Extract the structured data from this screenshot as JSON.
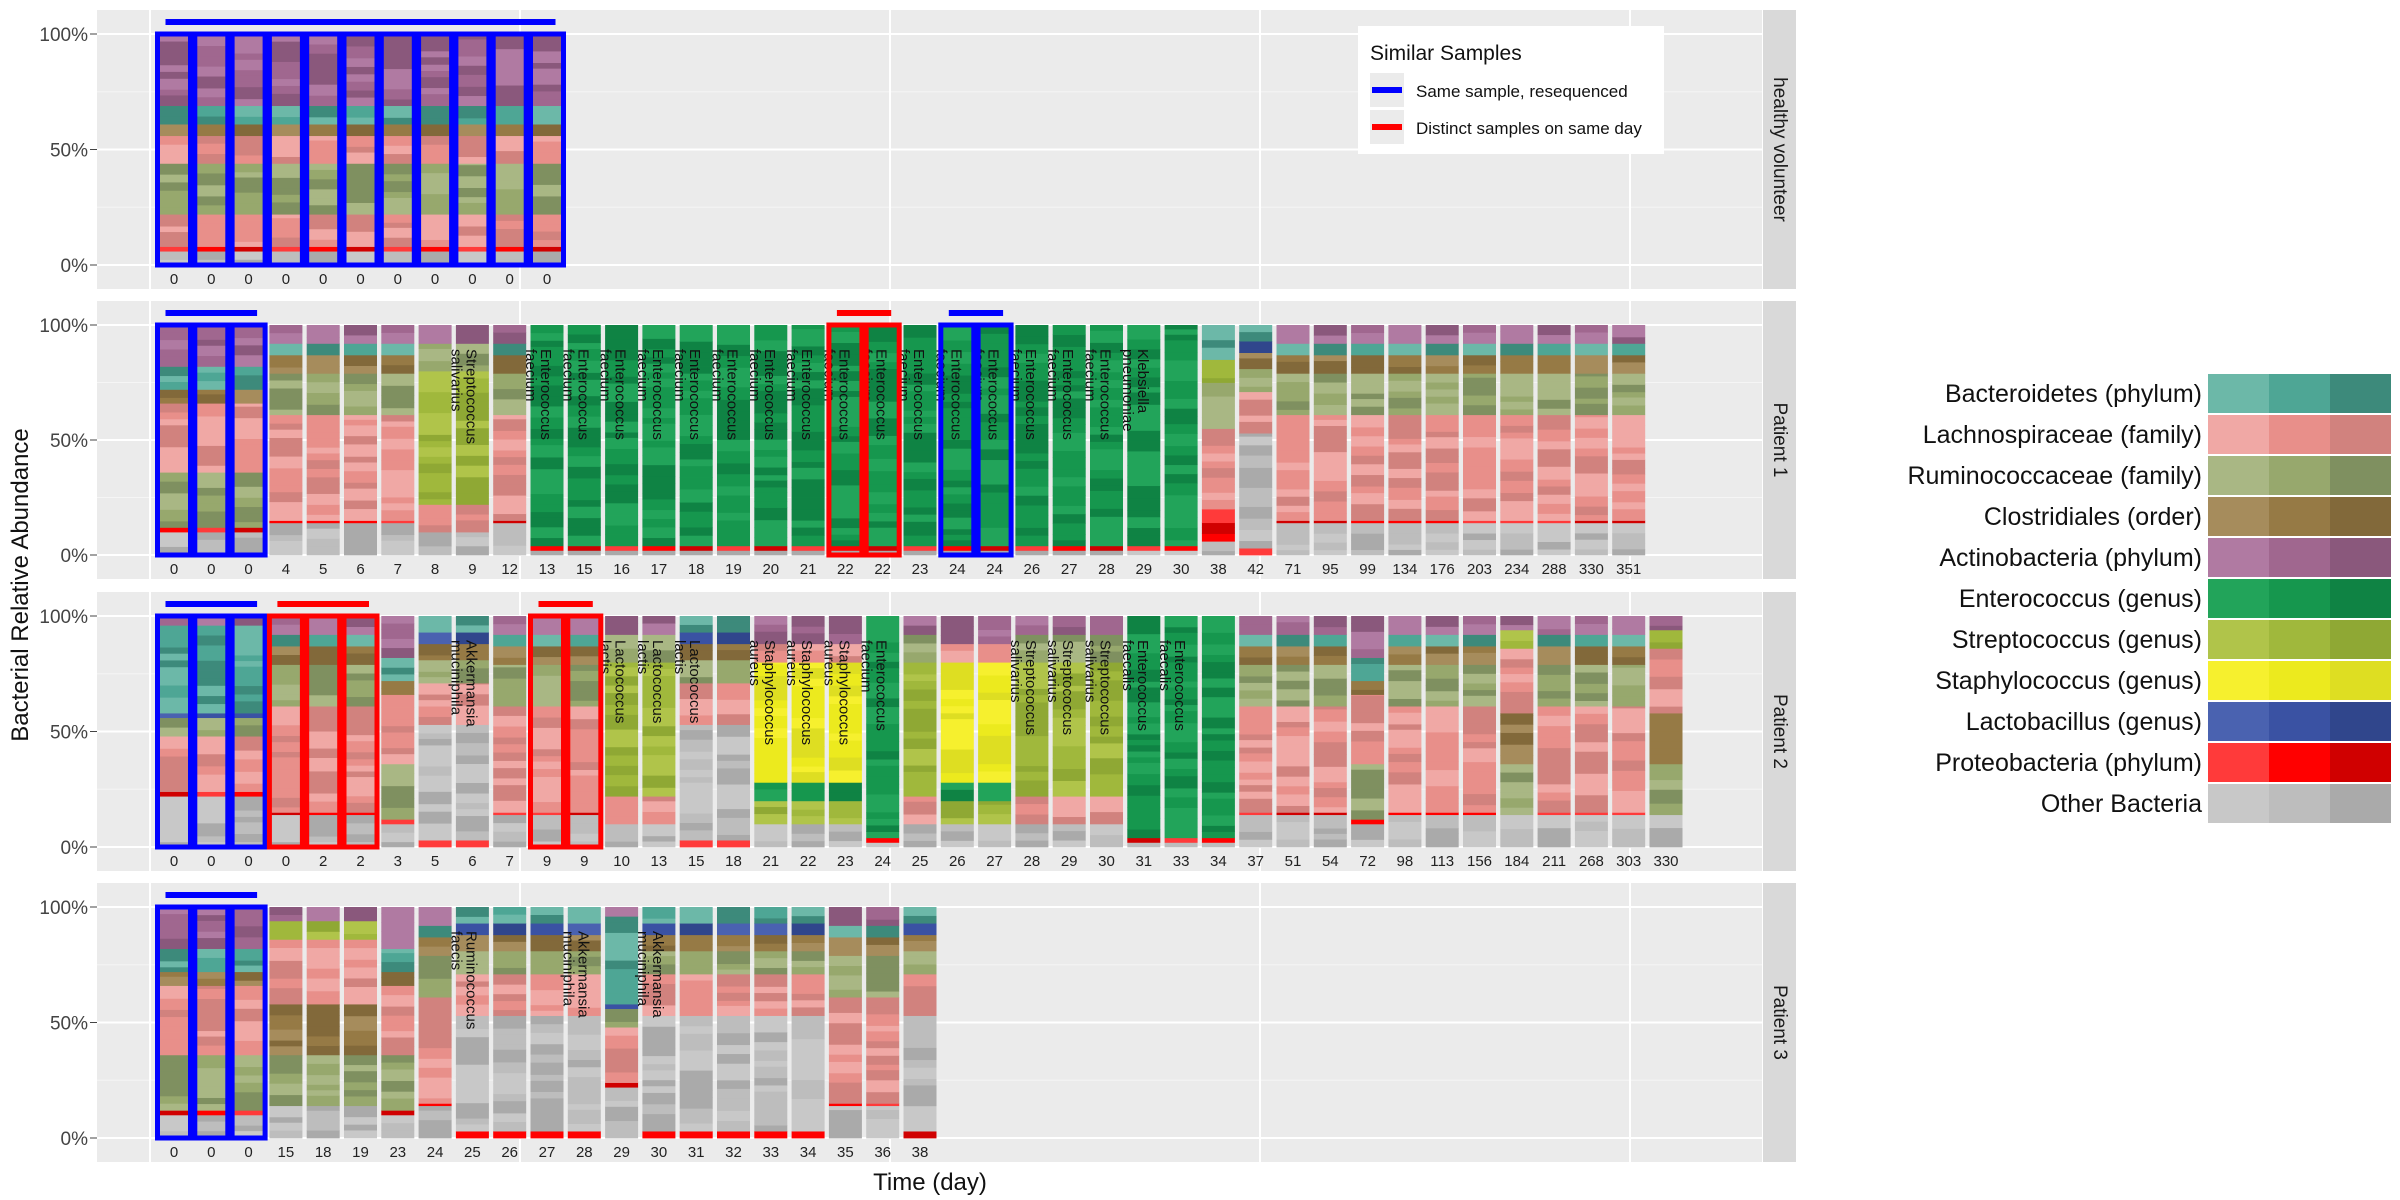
{
  "figure": {
    "ylabel": "Bacterial Relative Abundance",
    "xlabel": "Time (day)"
  },
  "legend": {
    "title": "Similar Samples",
    "items": [
      {
        "label": "Same sample, resequenced",
        "color": "#0000ff"
      },
      {
        "label": "Distinct samples on same day",
        "color": "#ff0000"
      }
    ]
  },
  "taxa_key": [
    {
      "label": "Bacteroidetes (phylum)",
      "colors": [
        "#6cb8a8",
        "#4ea695",
        "#3d8a7b"
      ]
    },
    {
      "label": "Lachnospiraceae (family)",
      "colors": [
        "#f0a8a5",
        "#e88f8a",
        "#d1827e"
      ]
    },
    {
      "label": "Ruminococcaceae (family)",
      "colors": [
        "#a9b784",
        "#97a86d",
        "#7f9060"
      ]
    },
    {
      "label": "Clostridiales (order)",
      "colors": [
        "#a68c5c",
        "#967a45",
        "#82693a"
      ]
    },
    {
      "label": "Actinobacteria (phylum)",
      "colors": [
        "#b07aa2",
        "#a0678f",
        "#8a587c"
      ]
    },
    {
      "label": "Enterococcus (genus)",
      "colors": [
        "#22a45a",
        "#16974e",
        "#0f8344"
      ]
    },
    {
      "label": "Streptococcus (genus)",
      "colors": [
        "#b0c44a",
        "#a0b83c",
        "#8fa834"
      ]
    },
    {
      "label": "Staphylococcus (genus)",
      "colors": [
        "#f6f02e",
        "#ecea1e",
        "#dede22"
      ]
    },
    {
      "label": "Lactobacillus (genus)",
      "colors": [
        "#4a62b0",
        "#3a52a3",
        "#30468c"
      ]
    },
    {
      "label": "Proteobacteria (phylum)",
      "colors": [
        "#ff3a3a",
        "#ff0000",
        "#d00000"
      ]
    },
    {
      "label": "Other Bacteria",
      "colors": [
        "#c8c8c8",
        "#bdbdbd",
        "#aaaaaa"
      ]
    }
  ],
  "chart_data": {
    "type": "bar",
    "stacked": true,
    "ylim": [
      0,
      100
    ],
    "yticks": [
      "0%",
      "50%",
      "100%"
    ],
    "panels": [
      {
        "name": "healthy volunteer",
        "days": [
          "0",
          "0",
          "0",
          "0",
          "0",
          "0",
          "0",
          "0",
          "0",
          "0",
          "0"
        ],
        "profiles": [
          "H",
          "H",
          "H",
          "H",
          "H",
          "H",
          "H",
          "H",
          "H",
          "H",
          "H"
        ],
        "annotations": [],
        "highlight_boxes": [
          {
            "from": 0,
            "to": 10,
            "color": "blue"
          }
        ]
      },
      {
        "name": "Patient 1",
        "days": [
          "0",
          "0",
          "0",
          "4",
          "5",
          "6",
          "7",
          "8",
          "9",
          "12",
          "13",
          "15",
          "16",
          "17",
          "18",
          "19",
          "20",
          "21",
          "22",
          "22",
          "23",
          "24",
          "24",
          "26",
          "27",
          "28",
          "29",
          "30",
          "38",
          "42",
          "71",
          "95",
          "99",
          "134",
          "176",
          "203",
          "234",
          "288",
          "330",
          "351"
        ],
        "profiles": [
          "R",
          "R",
          "R",
          "L",
          "L",
          "L",
          "L",
          "S",
          "S",
          "L",
          "E",
          "E",
          "E",
          "E",
          "E",
          "E",
          "E",
          "E",
          "E",
          "E",
          "E",
          "E",
          "E",
          "E",
          "E",
          "E",
          "E",
          "E",
          "M",
          "O",
          "L",
          "L",
          "L",
          "L",
          "L",
          "L",
          "L",
          "L",
          "L",
          "L"
        ],
        "annotations": [
          {
            "index": 8,
            "text": "Streptococcus salivarius"
          },
          {
            "index": 10,
            "text": "Enterococcus faecium"
          },
          {
            "index": 11,
            "text": "Enterococcus faecium"
          },
          {
            "index": 12,
            "text": "Enterococcus faecium"
          },
          {
            "index": 13,
            "text": "Enterococcus faecium"
          },
          {
            "index": 14,
            "text": "Enterococcus faecium"
          },
          {
            "index": 15,
            "text": "Enterococcus faecium"
          },
          {
            "index": 16,
            "text": "Enterococcus faecium"
          },
          {
            "index": 17,
            "text": "Enterococcus faecium"
          },
          {
            "index": 18,
            "text": "Enterococcus faecium"
          },
          {
            "index": 19,
            "text": "Enterococcus faecium"
          },
          {
            "index": 20,
            "text": "Enterococcus faecium"
          },
          {
            "index": 21,
            "text": "Enterococcus faecium"
          },
          {
            "index": 22,
            "text": "Enterococcus faecium"
          },
          {
            "index": 23,
            "text": "Enterococcus faecium"
          },
          {
            "index": 24,
            "text": "Enterococcus faecium"
          },
          {
            "index": 25,
            "text": "Enterococcus faecium"
          },
          {
            "index": 26,
            "text": "Klebsiella pneumoniae"
          }
        ],
        "highlight_boxes": [
          {
            "from": 0,
            "to": 2,
            "color": "blue"
          },
          {
            "from": 18,
            "to": 19,
            "color": "red"
          },
          {
            "from": 21,
            "to": 22,
            "color": "blue"
          }
        ]
      },
      {
        "name": "Patient 2",
        "days": [
          "0",
          "0",
          "0",
          "0",
          "2",
          "2",
          "3",
          "5",
          "6",
          "7",
          "9",
          "9",
          "10",
          "13",
          "15",
          "18",
          "21",
          "22",
          "23",
          "24",
          "25",
          "26",
          "27",
          "28",
          "29",
          "30",
          "31",
          "33",
          "34",
          "37",
          "51",
          "54",
          "72",
          "98",
          "113",
          "156",
          "184",
          "211",
          "268",
          "303",
          "330"
        ],
        "profiles": [
          "B",
          "B",
          "B",
          "L",
          "L",
          "L",
          "R",
          "O",
          "O",
          "L",
          "L",
          "L",
          "S",
          "S",
          "O",
          "O",
          "Y",
          "Y",
          "Y",
          "E",
          "S",
          "Y",
          "Y",
          "S",
          "S",
          "S",
          "E",
          "E",
          "E",
          "L",
          "L",
          "L",
          "R",
          "L",
          "L",
          "L",
          "C",
          "L",
          "L",
          "L",
          "C"
        ],
        "annotations": [
          {
            "index": 8,
            "text": "Akkermansia muciniphila"
          },
          {
            "index": 12,
            "text": "Lactococcus lactis"
          },
          {
            "index": 13,
            "text": "Lactococcus lactis"
          },
          {
            "index": 14,
            "text": "Lactococcus lactis"
          },
          {
            "index": 16,
            "text": "Staphylococcus aureus"
          },
          {
            "index": 17,
            "text": "Staphylococcus aureus"
          },
          {
            "index": 18,
            "text": "Staphylococcus aureus"
          },
          {
            "index": 19,
            "text": "Enterococcus faecium"
          },
          {
            "index": 23,
            "text": "Streptococcus salivarius"
          },
          {
            "index": 24,
            "text": "Streptococcus salivarius"
          },
          {
            "index": 25,
            "text": "Streptococcus salivarius"
          },
          {
            "index": 26,
            "text": "Enterococcus faecalis"
          },
          {
            "index": 27,
            "text": "Enterococcus faecalis"
          }
        ],
        "highlight_boxes": [
          {
            "from": 0,
            "to": 2,
            "color": "blue"
          },
          {
            "from": 3,
            "to": 5,
            "color": "red"
          },
          {
            "from": 10,
            "to": 11,
            "color": "red"
          }
        ]
      },
      {
        "name": "Patient 3",
        "days": [
          "0",
          "0",
          "0",
          "15",
          "18",
          "19",
          "23",
          "24",
          "25",
          "26",
          "27",
          "28",
          "29",
          "30",
          "31",
          "32",
          "33",
          "34",
          "35",
          "36",
          "38"
        ],
        "profiles": [
          "R",
          "R",
          "R",
          "C",
          "C",
          "C",
          "R",
          "L",
          "O",
          "O",
          "O",
          "O",
          "B",
          "O",
          "O",
          "O",
          "O",
          "O",
          "L",
          "L",
          "O"
        ],
        "annotations": [
          {
            "index": 8,
            "text": "Ruminococcus faecis"
          },
          {
            "index": 11,
            "text": "Akkermansia muciniphila"
          },
          {
            "index": 13,
            "text": "Akkermansia muciniphila"
          }
        ],
        "highlight_boxes": [
          {
            "from": 0,
            "to": 2,
            "color": "blue"
          }
        ]
      }
    ]
  }
}
